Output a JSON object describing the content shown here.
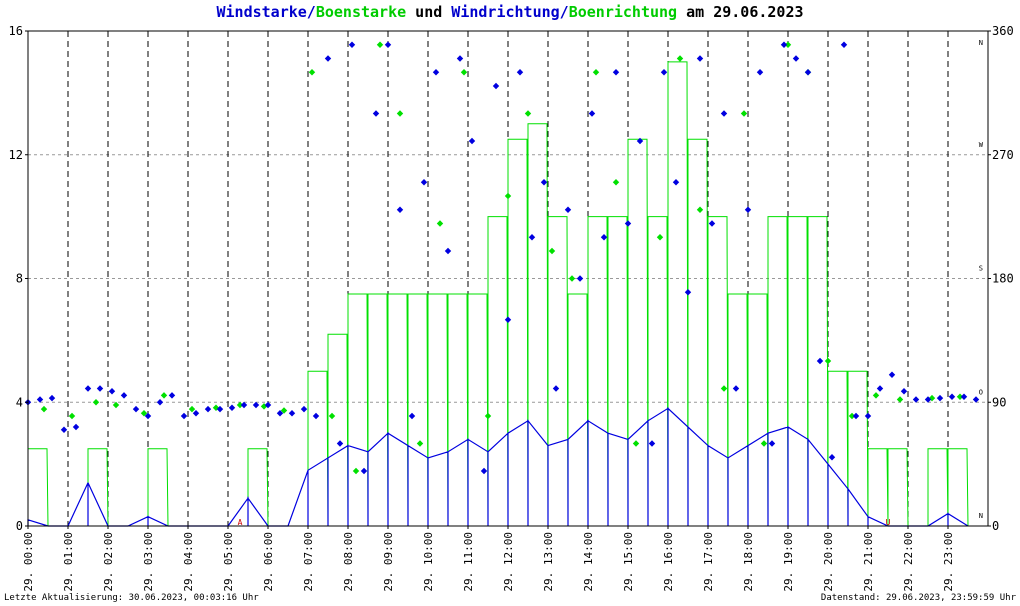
{
  "title": {
    "part1": "Windstarke/",
    "part2": "Boenstarke",
    "part3": " und ",
    "part4": "Windrichtung/",
    "part5": "Boenrichtung",
    "part6": " am 29.06.2023"
  },
  "footer": {
    "left": "Letzte Aktualisierung: 30.06.2023, 00:03:16 Uhr",
    "right": "Datenstand: 29.06.2023, 23:59:59 Uhr"
  },
  "colors": {
    "wind": "#0000e0",
    "gust": "#00e000",
    "grid": "#000000",
    "background": "#ffffff",
    "marker": "#cc0000"
  },
  "chart_data": {
    "type": "line",
    "xlim": [
      0,
      24
    ],
    "ylim_left": [
      0,
      16
    ],
    "ylim_right": [
      0,
      360
    ],
    "yticks_left": [
      "0",
      "4",
      "8",
      "12",
      "16"
    ],
    "yticks_right": [
      "0",
      "90",
      "180",
      "270",
      "360"
    ],
    "compass_labels": [
      {
        "dir": 0,
        "label": "N"
      },
      {
        "dir": 90,
        "label": "O"
      },
      {
        "dir": 180,
        "label": "S"
      },
      {
        "dir": 270,
        "label": "W"
      },
      {
        "dir": 360,
        "label": "N"
      }
    ],
    "xticks": [
      "29. 00:00",
      "29. 01:00",
      "29. 02:00",
      "29. 03:00",
      "29. 04:00",
      "29. 05:00",
      "29. 06:00",
      "29. 07:00",
      "29. 08:00",
      "29. 09:00",
      "29. 10:00",
      "29. 11:00",
      "29. 12:00",
      "29. 13:00",
      "29. 14:00",
      "29. 15:00",
      "29. 16:00",
      "29. 17:00",
      "29. 18:00",
      "29. 19:00",
      "29. 20:00",
      "29. 21:00",
      "29. 22:00",
      "29. 23:00"
    ],
    "sun_markers": [
      {
        "hour": 5.3,
        "label": "A"
      },
      {
        "hour": 21.5,
        "label": "U"
      }
    ],
    "series": [
      {
        "name": "Windstarke",
        "color": "#0000e0",
        "kind": "line",
        "x": [
          0.0,
          0.5,
          1.0,
          1.5,
          2.0,
          2.5,
          3.0,
          3.5,
          4.0,
          4.5,
          5.0,
          5.5,
          6.0,
          6.5,
          7.0,
          7.5,
          8.0,
          8.5,
          9.0,
          9.5,
          10.0,
          10.5,
          11.0,
          11.5,
          12.0,
          12.5,
          13.0,
          13.5,
          14.0,
          14.5,
          15.0,
          15.5,
          16.0,
          16.5,
          17.0,
          17.5,
          18.0,
          18.5,
          19.0,
          19.5,
          20.0,
          20.5,
          21.0,
          21.5,
          22.0,
          22.5,
          23.0,
          23.5
        ],
        "values": [
          0.2,
          0.0,
          0.0,
          1.4,
          0.0,
          0.0,
          0.3,
          0.0,
          0.0,
          0.0,
          0.0,
          0.9,
          0.0,
          0.0,
          1.8,
          2.2,
          2.6,
          2.4,
          3.0,
          2.6,
          2.2,
          2.4,
          2.8,
          2.4,
          3.0,
          3.4,
          2.6,
          2.8,
          3.4,
          3.0,
          2.8,
          3.4,
          3.8,
          3.2,
          2.6,
          2.2,
          2.6,
          3.0,
          3.2,
          2.8,
          2.0,
          1.2,
          0.3,
          0.0,
          0.0,
          0.0,
          0.4,
          0.0
        ]
      },
      {
        "name": "Boenstarke",
        "color": "#00e000",
        "kind": "line",
        "x": [
          0.0,
          0.5,
          1.0,
          1.5,
          2.0,
          2.5,
          3.0,
          3.5,
          4.0,
          4.5,
          5.0,
          5.5,
          6.0,
          6.5,
          7.0,
          7.5,
          8.0,
          8.5,
          9.0,
          9.5,
          10.0,
          10.5,
          11.0,
          11.5,
          12.0,
          12.5,
          13.0,
          13.5,
          14.0,
          14.5,
          15.0,
          15.5,
          16.0,
          16.5,
          17.0,
          17.5,
          18.0,
          18.5,
          19.0,
          19.5,
          20.0,
          20.5,
          21.0,
          21.5,
          22.0,
          22.5,
          23.0,
          23.5
        ],
        "values": [
          2.5,
          0.0,
          0.0,
          2.5,
          0.0,
          0.0,
          2.5,
          0.0,
          0.0,
          0.0,
          0.0,
          2.5,
          0.0,
          0.0,
          5.0,
          6.2,
          7.5,
          7.5,
          7.5,
          7.5,
          7.5,
          7.5,
          7.5,
          10.0,
          12.5,
          13.0,
          10.0,
          7.5,
          10.0,
          10.0,
          12.5,
          10.0,
          15.0,
          12.5,
          10.0,
          7.5,
          7.5,
          10.0,
          10.0,
          10.0,
          5.0,
          5.0,
          2.5,
          2.5,
          0.0,
          2.5,
          2.5,
          0.0
        ]
      },
      {
        "name": "Windrichtung",
        "color": "#0000e0",
        "kind": "scatter",
        "x": [
          0.0,
          0.3,
          0.6,
          0.9,
          1.2,
          1.5,
          1.8,
          2.1,
          2.4,
          2.7,
          3.0,
          3.3,
          3.6,
          3.9,
          4.2,
          4.5,
          4.8,
          5.1,
          5.4,
          5.7,
          6.0,
          6.3,
          6.6,
          6.9,
          7.2,
          7.5,
          7.8,
          8.1,
          8.4,
          8.7,
          9.0,
          9.3,
          9.6,
          9.9,
          10.2,
          10.5,
          10.8,
          11.1,
          11.4,
          11.7,
          12.0,
          12.3,
          12.6,
          12.9,
          13.2,
          13.5,
          13.8,
          14.1,
          14.4,
          14.7,
          15.0,
          15.3,
          15.6,
          15.9,
          16.2,
          16.5,
          16.8,
          17.1,
          17.4,
          17.7,
          18.0,
          18.3,
          18.6,
          18.9,
          19.2,
          19.5,
          19.8,
          20.1,
          20.4,
          20.7,
          21.0,
          21.3,
          21.6,
          21.9,
          22.2,
          22.5,
          22.8,
          23.1,
          23.4,
          23.7
        ],
        "values": [
          90,
          92,
          93,
          70,
          72,
          100,
          100,
          98,
          95,
          85,
          80,
          90,
          95,
          80,
          82,
          85,
          85,
          86,
          88,
          88,
          88,
          82,
          82,
          85,
          80,
          340,
          60,
          350,
          40,
          300,
          350,
          230,
          80,
          250,
          330,
          200,
          340,
          280,
          40,
          320,
          150,
          330,
          210,
          250,
          100,
          230,
          180,
          300,
          210,
          330,
          220,
          280,
          60,
          330,
          250,
          170,
          340,
          220,
          300,
          100,
          230,
          330,
          60,
          350,
          340,
          330,
          120,
          50,
          350,
          80,
          80,
          100,
          110,
          98,
          92,
          92,
          93,
          94,
          94,
          92
        ]
      },
      {
        "name": "Boenrichtung",
        "color": "#00e000",
        "kind": "scatter",
        "x": [
          0.4,
          1.1,
          1.7,
          2.2,
          2.9,
          3.4,
          4.1,
          4.7,
          5.3,
          5.9,
          6.4,
          7.1,
          7.6,
          8.2,
          8.8,
          9.3,
          9.8,
          10.3,
          10.9,
          11.5,
          12.0,
          12.5,
          13.1,
          13.6,
          14.2,
          14.7,
          15.2,
          15.8,
          16.3,
          16.8,
          17.4,
          17.9,
          18.4,
          19.0,
          19.5,
          20.0,
          20.6,
          21.2,
          21.8,
          22.6,
          23.3
        ],
        "values": [
          85,
          80,
          90,
          88,
          82,
          95,
          85,
          86,
          88,
          87,
          84,
          330,
          80,
          40,
          350,
          300,
          60,
          220,
          330,
          80,
          240,
          300,
          200,
          180,
          330,
          250,
          60,
          210,
          340,
          230,
          100,
          300,
          60,
          350,
          330,
          120,
          80,
          95,
          92,
          93,
          94
        ]
      }
    ]
  }
}
